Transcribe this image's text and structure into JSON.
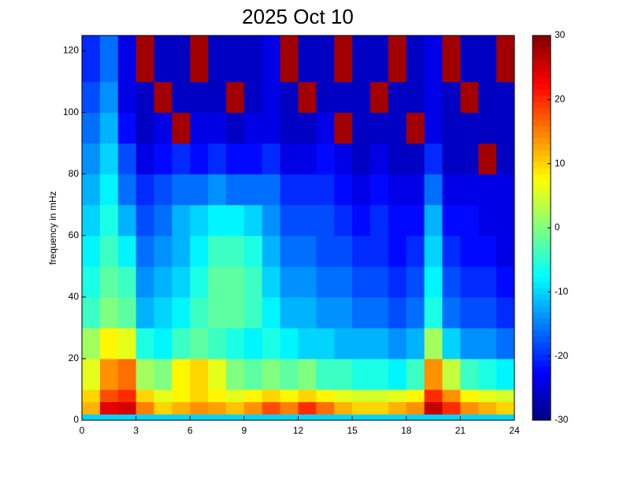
{
  "chart_data": {
    "type": "heatmap",
    "title": "2025 Oct 10",
    "ylabel": "frequency in mHz",
    "xlim": [
      0,
      24
    ],
    "xticks": [
      0,
      3,
      6,
      9,
      12,
      15,
      18,
      21,
      24
    ],
    "ylim": [
      0,
      125
    ],
    "yticks": [
      0,
      20,
      40,
      60,
      80,
      100,
      120
    ],
    "clim": [
      -30,
      30
    ],
    "cticks": [
      -30,
      -20,
      -10,
      0,
      10,
      20,
      30
    ],
    "colormap": "jet",
    "xbins": [
      0,
      1,
      2,
      3,
      4,
      5,
      6,
      7,
      8,
      9,
      10,
      11,
      12,
      13,
      14,
      15,
      16,
      17,
      18,
      19,
      20,
      21,
      22,
      23,
      24
    ],
    "ybins": [
      0,
      2,
      6,
      10,
      20,
      30,
      40,
      50,
      60,
      70,
      80,
      90,
      100,
      110,
      125
    ],
    "values": [
      [
        -10,
        -10,
        -10,
        -10,
        -10,
        -10,
        -10,
        -10,
        -10,
        -10,
        -10,
        -10,
        -10,
        -10,
        -10,
        -10,
        -10,
        -10,
        -10,
        -10,
        -10,
        -10,
        -10,
        -10
      ],
      [
        12,
        24,
        25,
        15,
        10,
        12,
        14,
        13,
        11,
        14,
        18,
        15,
        20,
        16,
        12,
        10,
        10,
        12,
        14,
        26,
        20,
        14,
        12,
        10
      ],
      [
        10,
        18,
        20,
        10,
        6,
        8,
        10,
        8,
        6,
        8,
        10,
        8,
        10,
        8,
        6,
        5,
        5,
        6,
        8,
        20,
        14,
        8,
        6,
        5
      ],
      [
        6,
        14,
        16,
        2,
        0,
        8,
        10,
        6,
        0,
        -2,
        0,
        -2,
        0,
        -4,
        -4,
        -6,
        -6,
        -8,
        -4,
        14,
        4,
        -4,
        -6,
        -8
      ],
      [
        2,
        8,
        6,
        -6,
        -8,
        -4,
        -2,
        -4,
        -6,
        -8,
        -6,
        -8,
        -10,
        -10,
        -12,
        -12,
        -12,
        -14,
        -12,
        2,
        -10,
        -14,
        -14,
        -16
      ],
      [
        -4,
        0,
        -2,
        -12,
        -10,
        -8,
        -4,
        -2,
        -2,
        -4,
        -8,
        -12,
        -12,
        -14,
        -14,
        -16,
        -16,
        -18,
        -16,
        -6,
        -16,
        -18,
        -18,
        -20
      ],
      [
        -6,
        -2,
        -4,
        -14,
        -12,
        -10,
        -6,
        -2,
        -2,
        -4,
        -10,
        -14,
        -14,
        -16,
        -16,
        -18,
        -18,
        -20,
        -18,
        -8,
        -18,
        -20,
        -20,
        -22
      ],
      [
        -8,
        -4,
        -8,
        -16,
        -14,
        -12,
        -8,
        -4,
        -4,
        -6,
        -12,
        -16,
        -16,
        -18,
        -18,
        -20,
        -20,
        -22,
        -20,
        -10,
        -20,
        -22,
        -22,
        -24
      ],
      [
        -10,
        -6,
        -12,
        -18,
        -16,
        -12,
        -10,
        -8,
        -8,
        -10,
        -14,
        -18,
        -18,
        -18,
        -20,
        -22,
        -20,
        -22,
        -22,
        -12,
        -22,
        -22,
        -24,
        -24
      ],
      [
        -12,
        -8,
        -16,
        -20,
        -18,
        -16,
        -16,
        -14,
        -16,
        -16,
        -16,
        -20,
        -20,
        -20,
        -22,
        -24,
        -22,
        -24,
        -24,
        -16,
        -24,
        -24,
        -24,
        -24
      ],
      [
        -14,
        -10,
        -18,
        -24,
        -22,
        -20,
        -22,
        -20,
        -22,
        -22,
        -20,
        -24,
        -24,
        -22,
        -24,
        -26,
        -24,
        -26,
        -26,
        -20,
        -26,
        -26,
        28,
        -26
      ],
      [
        -16,
        -12,
        -22,
        -26,
        -24,
        28,
        -24,
        -24,
        -26,
        -24,
        -24,
        -26,
        -26,
        -24,
        28,
        -26,
        -26,
        -26,
        28,
        -24,
        -26,
        -26,
        -26,
        -26
      ],
      [
        -18,
        -14,
        -24,
        -26,
        28,
        -26,
        -26,
        -26,
        28,
        -26,
        -24,
        -26,
        28,
        -26,
        -26,
        -26,
        28,
        -26,
        -26,
        -24,
        -26,
        28,
        -26,
        -26
      ],
      [
        -20,
        -16,
        -24,
        28,
        -26,
        -26,
        28,
        -26,
        -26,
        -26,
        -24,
        28,
        -26,
        -26,
        28,
        -26,
        -26,
        28,
        -26,
        -24,
        28,
        -26,
        -26,
        28
      ]
    ]
  }
}
